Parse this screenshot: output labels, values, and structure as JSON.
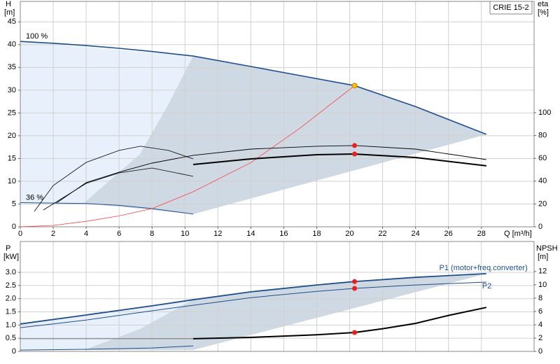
{
  "chart_data": [
    {
      "type": "line",
      "model": "CRIE 15-2",
      "ylabel": "H",
      "yunit": "[m]",
      "y2label": "eta",
      "y2unit": "[%]",
      "xlabel": "Q [m³/h]",
      "xlim": [
        0,
        31.2
      ],
      "xticks": [
        0,
        2,
        4,
        6,
        8,
        10,
        12,
        14,
        16,
        18,
        20,
        22,
        24,
        26,
        28
      ],
      "ylim": [
        0,
        49.5
      ],
      "yticks": [
        0,
        5,
        10,
        15,
        20,
        25,
        30,
        35,
        40,
        45
      ],
      "y2lim": [
        0,
        197.5
      ],
      "y2ticks": [
        0,
        20,
        40,
        60,
        80,
        100
      ],
      "grid": true,
      "duty_q": 20.3,
      "series": [
        {
          "name": "100 %",
          "label_position": "start",
          "color": "#1f4e8c",
          "line_width": 1.6,
          "x": [
            0,
            2,
            4,
            6,
            8,
            10.5,
            14,
            17,
            20.3,
            24,
            28.3
          ],
          "values": [
            40.7,
            40.3,
            39.8,
            39.2,
            38.5,
            37.5,
            35.2,
            33.2,
            31.0,
            26.4,
            20.3
          ]
        },
        {
          "name": "36 %",
          "label_position": "start",
          "color": "#1f4e8c",
          "line_width": 1,
          "x": [
            0,
            4,
            6,
            8,
            10.5
          ],
          "values": [
            5.3,
            5.1,
            4.7,
            4.0,
            2.8
          ]
        },
        {
          "color": "#ff4040",
          "line_width": 0.8,
          "dot_color": "#ffc000",
          "x": [
            0,
            2,
            4,
            6,
            8,
            10.5,
            14,
            17,
            20.3
          ],
          "values": [
            0,
            0.3,
            1.2,
            2.4,
            4.0,
            7.7,
            14.1,
            21.7,
            31.0
          ]
        },
        {
          "axis": "y2",
          "color": "#000000",
          "line_width": 0.9,
          "dot_color": "#e82020",
          "x": [
            2.2,
            4,
            6,
            8,
            10.5,
            14,
            18,
            20.3,
            24,
            28.3
          ],
          "values": [
            20.9,
            38.7,
            47.9,
            55.8,
            62.6,
            68.1,
            70.6,
            71.2,
            68.1,
            58.9
          ]
        },
        {
          "axis": "y2",
          "color": "#000000",
          "line_width": 2,
          "dot_color": "#e82020",
          "x": [
            10.5,
            14,
            18,
            20.3,
            24,
            28.3
          ],
          "values": [
            54.6,
            59.5,
            63.2,
            63.8,
            60.7,
            53.4
          ]
        },
        {
          "axis": "y2",
          "color": "#000000",
          "line_width": 0.8,
          "x": [
            0.85,
            2,
            4,
            6,
            7.3,
            9,
            10.5
          ],
          "values": [
            13.5,
            36.2,
            56.4,
            66.9,
            70.6,
            66.9,
            59.5
          ]
        },
        {
          "axis": "y2",
          "color": "#000000",
          "line_width": 0.8,
          "x": [
            1.4,
            4,
            6,
            8,
            10.5
          ],
          "values": [
            14.7,
            38.0,
            47.2,
            51.5,
            44.2
          ]
        }
      ]
    },
    {
      "type": "line",
      "ylabel": "P",
      "yunit": "[kW]",
      "y2label": "NPSH",
      "y2unit": "[m]",
      "ylim": [
        0,
        4.17
      ],
      "yticks": [
        0,
        0.5,
        {
          "value": 1,
          "label": "1.0"
        },
        1.5,
        {
          "value": 2,
          "label": "2.0"
        },
        2.5,
        {
          "value": 3,
          "label": "3.0"
        }
      ],
      "y2lim": [
        0,
        16.5
      ],
      "y2ticks": [
        0,
        2,
        4,
        6,
        8,
        10,
        12
      ],
      "grid": true,
      "duty_q": 20.3,
      "series": [
        {
          "name": "P1 (motor+freq.converter)",
          "label_position": "end-above",
          "color": "#1f4e8c",
          "line_width": 1.8,
          "dot_color": "#e82020",
          "x": [
            0,
            4,
            8,
            10.5,
            14,
            18,
            20.3,
            24,
            28.3
          ],
          "values": [
            1.04,
            1.38,
            1.73,
            1.96,
            2.26,
            2.52,
            2.65,
            2.81,
            2.95
          ]
        },
        {
          "name": "P2",
          "label_position": "end-below",
          "color": "#1f4e8c",
          "line_width": 1,
          "dot_color": "#e82020",
          "x": [
            0,
            4,
            8,
            10.5,
            14,
            18,
            20.3,
            24,
            28.3
          ],
          "values": [
            0.9,
            1.19,
            1.54,
            1.75,
            2.04,
            2.28,
            2.39,
            2.52,
            2.63
          ]
        },
        {
          "color": "#1f4e8c",
          "line_width": 1,
          "x": [
            0,
            4,
            8,
            10.5
          ],
          "values": [
            0.05,
            0.08,
            0.13,
            0.21
          ]
        },
        {
          "axis": "y2",
          "color": "#000000",
          "line_width": 2,
          "dot_color": "#e82020",
          "x": [
            10.5,
            14,
            18,
            20.3,
            22,
            24,
            26,
            28.3
          ],
          "values": [
            1.9,
            2.1,
            2.5,
            2.84,
            3.4,
            4.2,
            5.4,
            6.6
          ]
        },
        {
          "axis": "y2",
          "color": "#555555",
          "line_width": 0.8,
          "x": [
            0,
            10.5
          ],
          "values": [
            1.9,
            1.9
          ]
        }
      ]
    }
  ]
}
